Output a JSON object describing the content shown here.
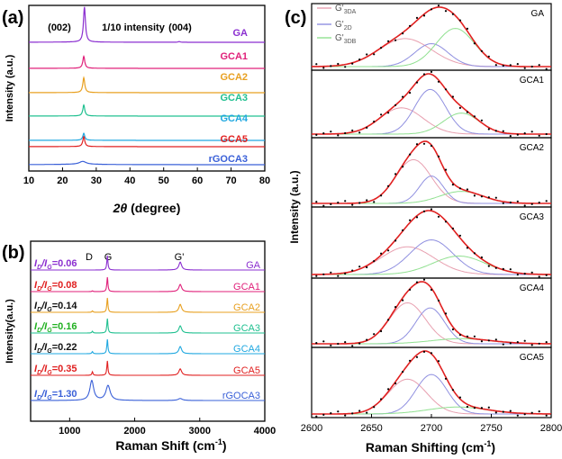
{
  "panels": {
    "a": {
      "label": "(a)",
      "ylabel": "Intensity (a.u.)",
      "xlabel_theta": "2θ",
      "xlabel_unit": " (degree)",
      "xticks": [
        "10",
        "20",
        "30",
        "40",
        "50",
        "60",
        "70",
        "80"
      ],
      "annotations": [
        "(002)",
        "1/10 intensity",
        "(004)"
      ],
      "samples": [
        {
          "name": "GA",
          "color": "#8b2fd0"
        },
        {
          "name": "GCA1",
          "color": "#e0207a"
        },
        {
          "name": "GCA2",
          "color": "#e8a020"
        },
        {
          "name": "GCA3",
          "color": "#20c090"
        },
        {
          "name": "GCA4",
          "color": "#20a8e0"
        },
        {
          "name": "GCA5",
          "color": "#e02020"
        },
        {
          "name": "rGOCA3",
          "color": "#3a60d8"
        }
      ]
    },
    "b": {
      "label": "(b)",
      "ylabel": "Intensity(a.u.)",
      "xlabel": "Raman Shift (cm",
      "xlabel_sup": "-1",
      "xlabel_end": ")",
      "xticks": [
        "1000",
        "2000",
        "3000",
        "4000"
      ],
      "peak_labels": [
        "D",
        "G",
        "G'"
      ],
      "ratios": [
        {
          "value": "=0.06",
          "color": "#8b2fd0"
        },
        {
          "value": "=0.08",
          "color": "#e02020"
        },
        {
          "value": "=0.14",
          "color": "#111111"
        },
        {
          "value": "=0.16",
          "color": "#20b020"
        },
        {
          "value": "=0.22",
          "color": "#111111"
        },
        {
          "value": "=0.35",
          "color": "#e02020"
        },
        {
          "value": "=1.30",
          "color": "#3a60d8"
        }
      ]
    },
    "c": {
      "label": "(c)",
      "ylabel": "Intensity (a.u.)",
      "xlabel": "Raman Shifting (cm",
      "xlabel_sup": "-1",
      "xlabel_end": ")",
      "xticks": [
        "2600",
        "2650",
        "2700",
        "2750",
        "2800"
      ],
      "legend": [
        "G'3DA",
        "G'2D",
        "G'3DB"
      ],
      "legend_colors": [
        "#e8a0b0",
        "#9090e0",
        "#90e090"
      ],
      "subpanels": [
        "GA",
        "GCA1",
        "GCA2",
        "GCA3",
        "GCA4",
        "GCA5"
      ]
    }
  },
  "chart_data": [
    {
      "type": "line",
      "title": "",
      "xlabel": "2θ (degree)",
      "ylabel": "Intensity (a.u.)",
      "xlim": [
        10,
        80
      ],
      "series": [
        {
          "name": "GA",
          "peaks": [
            {
              "x": 26.5,
              "height": 1.0
            },
            {
              "x": 54.6,
              "height": 0.02
            }
          ]
        },
        {
          "name": "GCA1",
          "peaks": [
            {
              "x": 26.3,
              "height": 0.6
            }
          ]
        },
        {
          "name": "GCA2",
          "peaks": [
            {
              "x": 26.3,
              "height": 0.75
            }
          ]
        },
        {
          "name": "GCA3",
          "peaks": [
            {
              "x": 26.3,
              "height": 0.55
            }
          ]
        },
        {
          "name": "GCA4",
          "peaks": [
            {
              "x": 26.3,
              "height": 0.35
            }
          ]
        },
        {
          "name": "GCA5",
          "peaks": [
            {
              "x": 26.3,
              "height": 0.5
            }
          ]
        },
        {
          "name": "rGOCA3",
          "peaks": [
            {
              "x": 26.0,
              "height": 0.15
            }
          ]
        }
      ]
    },
    {
      "type": "line",
      "title": "",
      "xlabel": "Raman Shift (cm-1)",
      "ylabel": "Intensity(a.u.)",
      "xlim": [
        400,
        4000
      ],
      "series": [
        {
          "name": "GA",
          "ID_IG": 0.06,
          "peaks": [
            {
              "x": 1350,
              "height": 0.0
            },
            {
              "x": 1580,
              "height": 1.0
            },
            {
              "x": 2700,
              "height": 0.55
            }
          ]
        },
        {
          "name": "GCA1",
          "ID_IG": 0.08,
          "peaks": [
            {
              "x": 1350,
              "height": 0.05
            },
            {
              "x": 1580,
              "height": 1.0
            },
            {
              "x": 2700,
              "height": 0.5
            }
          ]
        },
        {
          "name": "GCA2",
          "ID_IG": 0.14,
          "peaks": [
            {
              "x": 1350,
              "height": 0.1
            },
            {
              "x": 1580,
              "height": 1.0
            },
            {
              "x": 2700,
              "height": 0.55
            }
          ]
        },
        {
          "name": "GCA3",
          "ID_IG": 0.16,
          "peaks": [
            {
              "x": 1350,
              "height": 0.12
            },
            {
              "x": 1580,
              "height": 1.0
            },
            {
              "x": 2700,
              "height": 0.5
            }
          ]
        },
        {
          "name": "GCA4",
          "ID_IG": 0.22,
          "peaks": [
            {
              "x": 1350,
              "height": 0.15
            },
            {
              "x": 1580,
              "height": 1.0
            },
            {
              "x": 2700,
              "height": 0.5
            }
          ]
        },
        {
          "name": "GCA5",
          "ID_IG": 0.35,
          "peaks": [
            {
              "x": 1350,
              "height": 0.25
            },
            {
              "x": 1580,
              "height": 1.0
            },
            {
              "x": 2700,
              "height": 0.45
            }
          ]
        },
        {
          "name": "rGOCA3",
          "ID_IG": 1.3,
          "peaks": [
            {
              "x": 1340,
              "height": 1.0
            },
            {
              "x": 1590,
              "height": 0.75
            },
            {
              "x": 2700,
              "height": 0.1
            }
          ]
        }
      ]
    },
    {
      "type": "line",
      "title": "",
      "xlabel": "Raman Shifting (cm-1)",
      "ylabel": "Intensity (a.u.)",
      "xlim": [
        2600,
        2800
      ],
      "series": [
        {
          "name": "GA",
          "components": [
            {
              "name": "G'3DA",
              "center": 2678,
              "height": 0.55,
              "width": 22
            },
            {
              "name": "G'2D",
              "center": 2700,
              "height": 0.45,
              "width": 14
            },
            {
              "name": "G'3DB",
              "center": 2720,
              "height": 0.75,
              "width": 16
            }
          ]
        },
        {
          "name": "GCA1",
          "components": [
            {
              "name": "G'3DA",
              "center": 2675,
              "height": 0.5,
              "width": 18
            },
            {
              "name": "G'2D",
              "center": 2699,
              "height": 0.85,
              "width": 13
            },
            {
              "name": "G'3DB",
              "center": 2725,
              "height": 0.4,
              "width": 15
            }
          ]
        },
        {
          "name": "GCA2",
          "components": [
            {
              "name": "G'3DA",
              "center": 2685,
              "height": 0.8,
              "width": 15
            },
            {
              "name": "G'2D",
              "center": 2700,
              "height": 0.5,
              "width": 10
            },
            {
              "name": "G'3DB",
              "center": 2725,
              "height": 0.22,
              "width": 18
            }
          ]
        },
        {
          "name": "GCA3",
          "components": [
            {
              "name": "G'3DA",
              "center": 2680,
              "height": 0.6,
              "width": 22
            },
            {
              "name": "G'2D",
              "center": 2700,
              "height": 0.75,
              "width": 18
            },
            {
              "name": "G'3DB",
              "center": 2723,
              "height": 0.4,
              "width": 22
            }
          ]
        },
        {
          "name": "GCA4",
          "components": [
            {
              "name": "G'3DA",
              "center": 2680,
              "height": 0.8,
              "width": 15
            },
            {
              "name": "G'2D",
              "center": 2699,
              "height": 0.7,
              "width": 12
            },
            {
              "name": "G'3DB",
              "center": 2725,
              "height": 0.1,
              "width": 25
            }
          ]
        },
        {
          "name": "GCA5",
          "components": [
            {
              "name": "G'3DA",
              "center": 2680,
              "height": 0.75,
              "width": 16
            },
            {
              "name": "G'2D",
              "center": 2700,
              "height": 0.85,
              "width": 13
            },
            {
              "name": "G'3DB",
              "center": 2722,
              "height": 0.15,
              "width": 25
            }
          ]
        }
      ]
    }
  ]
}
